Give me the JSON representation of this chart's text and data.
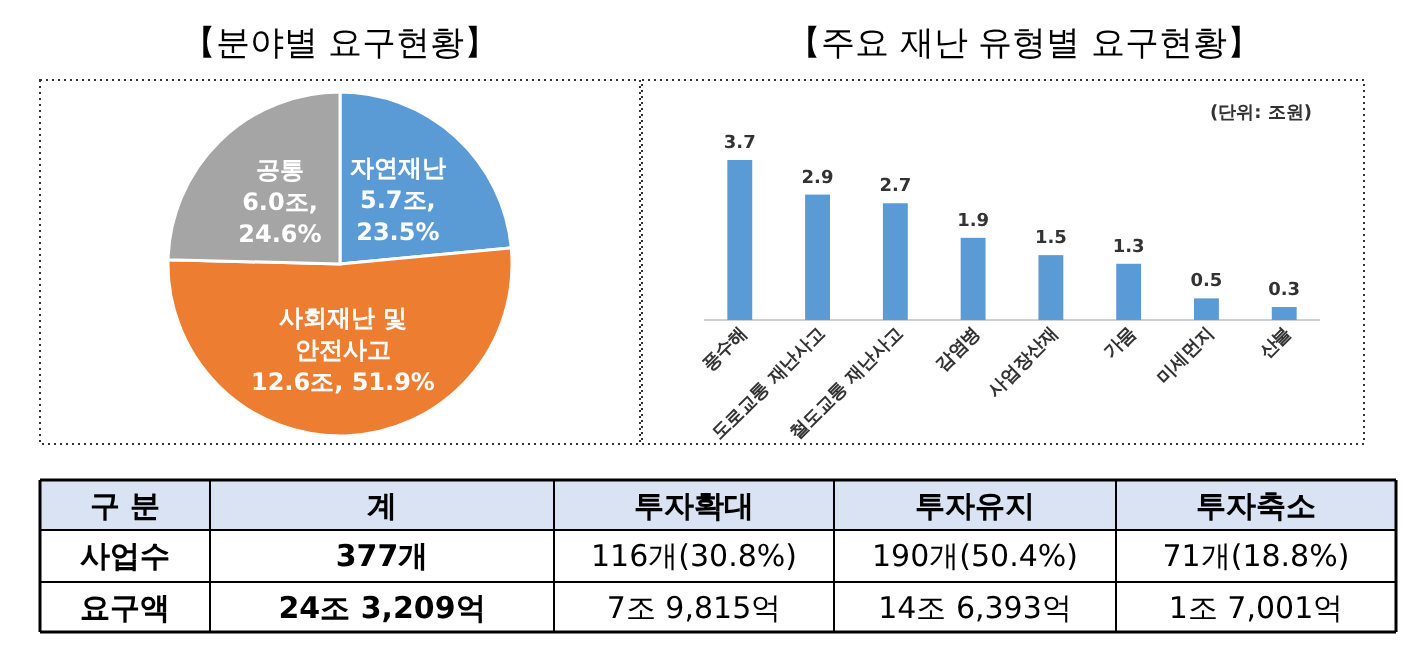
{
  "chart_data": [
    {
      "type": "pie",
      "title": "【분야별 요구현황】",
      "categories": [
        "자연재난",
        "사회재난 및 안전사고",
        "공통"
      ],
      "values": [
        23.5,
        51.9,
        24.6
      ],
      "colors": [
        "#5b9bd5",
        "#ed7d31",
        "#a5a5a5"
      ],
      "value_labels": [
        "5.7조, 23.5%",
        "12.6조, 51.9%",
        "6.0조, 24.6%"
      ]
    },
    {
      "type": "bar",
      "title": "【주요 재난 유형별 요구현황】",
      "categories": [
        "풍수해",
        "도로교통 재난사고",
        "철도교통 재난사고",
        "감염병",
        "사업장산재",
        "가뭄",
        "미세먼지",
        "산불"
      ],
      "values": [
        3.7,
        2.9,
        2.7,
        1.9,
        1.5,
        1.3,
        0.5,
        0.3
      ],
      "color": "#5b9bd5",
      "data_labels": true,
      "annotations": [
        "(단위: 조원)"
      ]
    },
    {
      "type": "other",
      "annotations": [
        "구 분"
      ],
      "categories": [
        "계",
        "투자확대",
        "투자유지",
        "투자축소"
      ],
      "y_categories": [
        "사업수",
        "요구액"
      ],
      "cell_labels": [
        [
          "377개",
          "116개(30.8%)",
          "190개(50.4%)",
          "71개(18.8%)"
        ],
        [
          "24조 3,209억",
          "7조 9,815억",
          "14조 6,393억",
          "1조 7,001억"
        ]
      ]
    }
  ]
}
